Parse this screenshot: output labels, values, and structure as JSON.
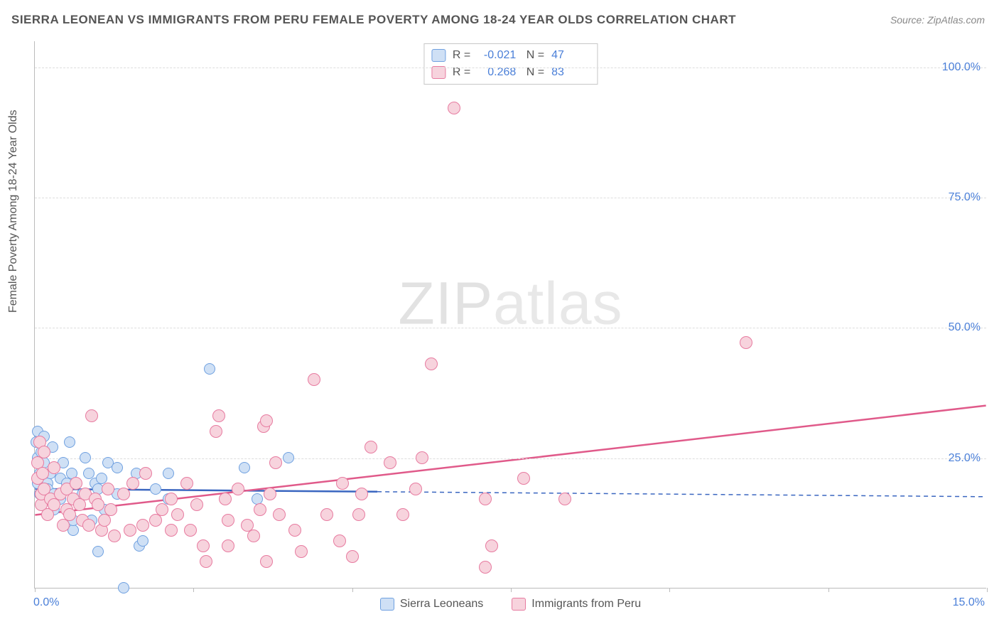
{
  "title": "SIERRA LEONEAN VS IMMIGRANTS FROM PERU FEMALE POVERTY AMONG 18-24 YEAR OLDS CORRELATION CHART",
  "source": "Source: ZipAtlas.com",
  "watermark_a": "ZIP",
  "watermark_b": "atlas",
  "yaxis_title": "Female Poverty Among 18-24 Year Olds",
  "chart": {
    "type": "scatter",
    "xlim": [
      0,
      15
    ],
    "ylim": [
      0,
      105
    ],
    "x_ticks": [
      0,
      2.5,
      5.0,
      7.5,
      10.0,
      12.5,
      15.0
    ],
    "x_tick_labels_shown": {
      "0": "0.0%",
      "15": "15.0%"
    },
    "y_ticks": [
      25,
      50,
      75,
      100
    ],
    "y_tick_labels": {
      "25": "25.0%",
      "50": "50.0%",
      "75": "75.0%",
      "100": "100.0%"
    },
    "grid_color": "#dddddd",
    "background_color": "#ffffff",
    "axis_color": "#bbbbbb",
    "tick_label_color": "#4a7fd8",
    "series": [
      {
        "name": "Sierra Leoneans",
        "fill": "#cfe0f5",
        "stroke": "#6fa0e0",
        "marker_radius": 8,
        "R": "-0.021",
        "N": "47",
        "trend": {
          "y_at_xmin": 19.0,
          "y_at_xmax": 17.5,
          "solid_until_x": 5.4,
          "color": "#3a66c0",
          "width": 2.5
        },
        "points": [
          [
            0.02,
            28
          ],
          [
            0.05,
            25
          ],
          [
            0.08,
            22
          ],
          [
            0.05,
            20
          ],
          [
            0.05,
            30
          ],
          [
            0.08,
            18
          ],
          [
            0.1,
            26
          ],
          [
            0.15,
            24
          ],
          [
            0.15,
            29
          ],
          [
            0.2,
            20
          ],
          [
            0.2,
            19
          ],
          [
            0.25,
            22
          ],
          [
            0.28,
            27
          ],
          [
            0.3,
            18
          ],
          [
            0.3,
            15
          ],
          [
            0.4,
            21
          ],
          [
            0.4,
            17
          ],
          [
            0.45,
            24
          ],
          [
            0.5,
            20
          ],
          [
            0.55,
            28
          ],
          [
            0.58,
            22
          ],
          [
            0.6,
            11
          ],
          [
            0.6,
            13
          ],
          [
            0.75,
            18
          ],
          [
            0.8,
            25
          ],
          [
            0.85,
            22
          ],
          [
            0.9,
            13
          ],
          [
            0.95,
            20
          ],
          [
            1.0,
            19
          ],
          [
            1.0,
            7
          ],
          [
            1.05,
            21
          ],
          [
            1.1,
            15
          ],
          [
            1.15,
            24
          ],
          [
            1.3,
            18
          ],
          [
            1.3,
            23
          ],
          [
            1.4,
            0
          ],
          [
            1.55,
            20
          ],
          [
            1.6,
            22
          ],
          [
            1.65,
            8
          ],
          [
            1.7,
            9
          ],
          [
            1.9,
            19
          ],
          [
            2.1,
            22
          ],
          [
            2.1,
            17
          ],
          [
            2.75,
            42
          ],
          [
            3.3,
            23
          ],
          [
            3.5,
            17
          ],
          [
            4.0,
            25
          ]
        ]
      },
      {
        "name": "Immigrants from Peru",
        "fill": "#f7d3dd",
        "stroke": "#e77ba0",
        "marker_radius": 9,
        "R": "0.268",
        "N": "83",
        "trend": {
          "y_at_xmin": 14.0,
          "y_at_xmax": 35.0,
          "solid_until_x": 15,
          "color": "#e05a8a",
          "width": 2.5
        },
        "points": [
          [
            0.05,
            24
          ],
          [
            0.05,
            21
          ],
          [
            0.08,
            28
          ],
          [
            0.1,
            16
          ],
          [
            0.1,
            18
          ],
          [
            0.12,
            22
          ],
          [
            0.15,
            19
          ],
          [
            0.15,
            26
          ],
          [
            0.2,
            14
          ],
          [
            0.25,
            17
          ],
          [
            0.3,
            16
          ],
          [
            0.3,
            23
          ],
          [
            0.4,
            18
          ],
          [
            0.45,
            12
          ],
          [
            0.5,
            15
          ],
          [
            0.5,
            19
          ],
          [
            0.55,
            14
          ],
          [
            0.6,
            17
          ],
          [
            0.65,
            20
          ],
          [
            0.7,
            16
          ],
          [
            0.75,
            13
          ],
          [
            0.8,
            18
          ],
          [
            0.85,
            12
          ],
          [
            0.9,
            33
          ],
          [
            0.95,
            17
          ],
          [
            1.0,
            16
          ],
          [
            1.05,
            11
          ],
          [
            1.1,
            13
          ],
          [
            1.15,
            19
          ],
          [
            1.2,
            15
          ],
          [
            1.25,
            10
          ],
          [
            1.4,
            18
          ],
          [
            1.5,
            11
          ],
          [
            1.55,
            20
          ],
          [
            1.7,
            12
          ],
          [
            1.75,
            22
          ],
          [
            1.9,
            13
          ],
          [
            2.0,
            15
          ],
          [
            2.15,
            17
          ],
          [
            2.15,
            11
          ],
          [
            2.25,
            14
          ],
          [
            2.4,
            20
          ],
          [
            2.45,
            11
          ],
          [
            2.55,
            16
          ],
          [
            2.65,
            8
          ],
          [
            2.7,
            5
          ],
          [
            2.85,
            30
          ],
          [
            2.9,
            33
          ],
          [
            3.0,
            17
          ],
          [
            3.05,
            13
          ],
          [
            3.05,
            8
          ],
          [
            3.2,
            19
          ],
          [
            3.35,
            12
          ],
          [
            3.45,
            10
          ],
          [
            3.55,
            15
          ],
          [
            3.6,
            31
          ],
          [
            3.65,
            5
          ],
          [
            3.65,
            32
          ],
          [
            3.7,
            18
          ],
          [
            3.8,
            24
          ],
          [
            3.85,
            14
          ],
          [
            4.1,
            11
          ],
          [
            4.2,
            7
          ],
          [
            4.4,
            40
          ],
          [
            4.6,
            14
          ],
          [
            4.8,
            9
          ],
          [
            4.85,
            20
          ],
          [
            5.0,
            6
          ],
          [
            5.1,
            14
          ],
          [
            5.15,
            18
          ],
          [
            5.3,
            27
          ],
          [
            5.6,
            24
          ],
          [
            5.8,
            14
          ],
          [
            6.0,
            19
          ],
          [
            6.1,
            25
          ],
          [
            6.25,
            43
          ],
          [
            6.6,
            92
          ],
          [
            7.1,
            4
          ],
          [
            7.1,
            17
          ],
          [
            7.2,
            8
          ],
          [
            7.7,
            21
          ],
          [
            8.35,
            17
          ],
          [
            11.2,
            47
          ]
        ]
      }
    ]
  },
  "corr_legend": {
    "R_label": "R =",
    "N_label": "N ="
  }
}
